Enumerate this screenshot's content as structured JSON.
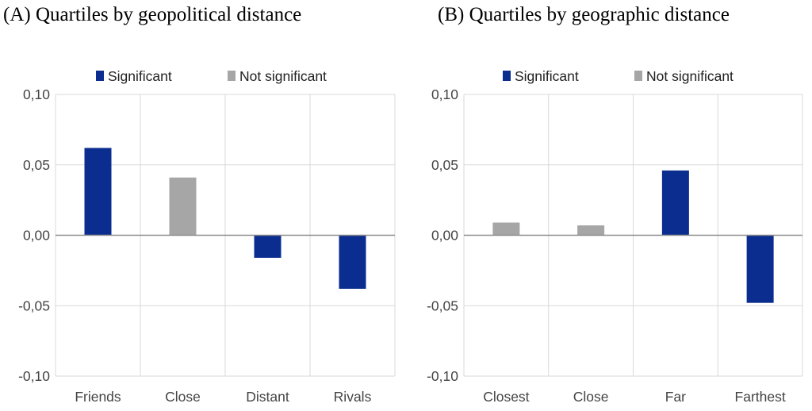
{
  "chart_data": [
    {
      "type": "bar",
      "title": "(A) Quartiles by geopolitical distance",
      "categories": [
        "Friends",
        "Close",
        "Distant",
        "Rivals"
      ],
      "values": [
        0.062,
        0.041,
        -0.016,
        -0.038
      ],
      "significant": [
        true,
        false,
        true,
        true
      ],
      "ylim": [
        -0.1,
        0.1
      ],
      "yticks": [
        0.1,
        0.05,
        0.0,
        -0.05,
        -0.1
      ],
      "ytick_labels": [
        "0,10",
        "0,05",
        "0,00",
        "-0,05",
        "-0,10"
      ],
      "legend": [
        "Significant",
        "Not significant"
      ],
      "legend_position": "top",
      "xlabel": "",
      "ylabel": "",
      "grid": true
    },
    {
      "type": "bar",
      "title": "(B) Quartiles by geographic distance",
      "categories": [
        "Closest",
        "Close",
        "Far",
        "Farthest"
      ],
      "values": [
        0.009,
        0.007,
        0.046,
        -0.048
      ],
      "significant": [
        false,
        false,
        true,
        true
      ],
      "ylim": [
        -0.1,
        0.1
      ],
      "yticks": [
        0.1,
        0.05,
        0.0,
        -0.05,
        -0.1
      ],
      "ytick_labels": [
        "0,10",
        "0,05",
        "0,00",
        "-0,05",
        "-0,10"
      ],
      "legend": [
        "Significant",
        "Not significant"
      ],
      "legend_position": "top",
      "xlabel": "",
      "ylabel": "",
      "grid": true
    }
  ],
  "colors": {
    "significant": "#0b2d8f",
    "not_significant": "#a6a6a6",
    "grid": "#d9d9d9",
    "axis": "#8c8c8c"
  }
}
